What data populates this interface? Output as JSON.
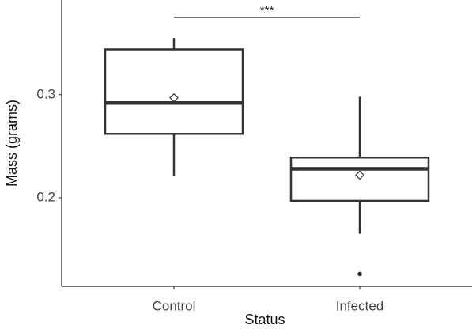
{
  "chart_data": {
    "type": "boxplot",
    "xlabel": "Status",
    "ylabel": "Mass (grams)",
    "categories": [
      "Control",
      "Infected"
    ],
    "boxes": [
      {
        "whislo": 0.221,
        "q1": 0.262,
        "med": 0.292,
        "q3": 0.344,
        "whishi": 0.355,
        "mean": 0.297,
        "outliers": []
      },
      {
        "whislo": 0.165,
        "q1": 0.197,
        "med": 0.228,
        "q3": 0.239,
        "whishi": 0.298,
        "mean": 0.222,
        "outliers": [
          0.126
        ]
      }
    ],
    "annotation": "***",
    "color": "#333333",
    "ylim": [
      0.114,
      0.392
    ],
    "yticks": [
      0.2,
      0.3
    ]
  }
}
